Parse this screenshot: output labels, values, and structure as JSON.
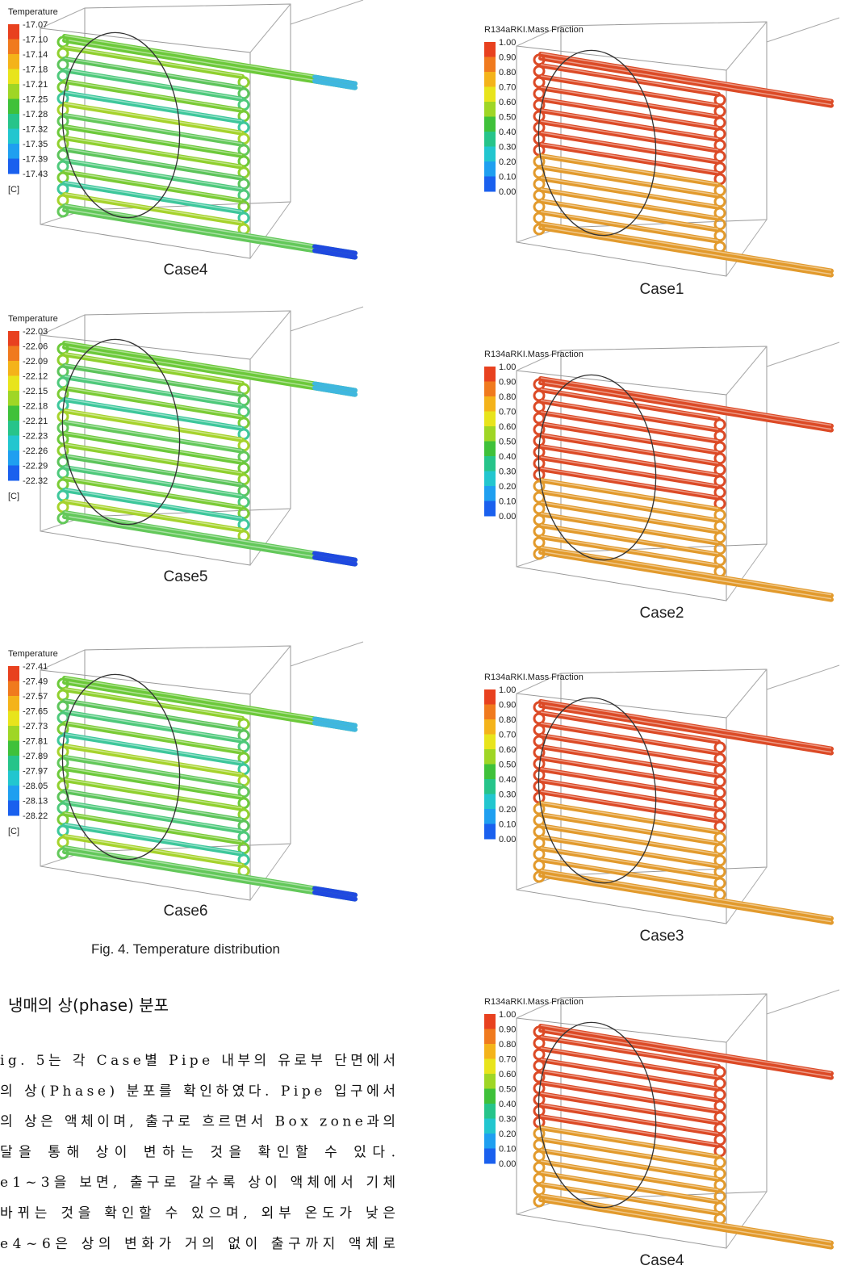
{
  "figure_left": {
    "panels": [
      {
        "legend_title": "Temperature",
        "ticks": [
          "-17.07",
          "-17.10",
          "-17.14",
          "-17.18",
          "-17.21",
          "-17.25",
          "-17.28",
          "-17.32",
          "-17.35",
          "-17.39",
          "-17.43"
        ],
        "unit": "[C]",
        "caption": "Case4"
      },
      {
        "legend_title": "Temperature",
        "ticks": [
          "-22.03",
          "-22.06",
          "-22.09",
          "-22.12",
          "-22.15",
          "-22.18",
          "-22.21",
          "-22.23",
          "-22.26",
          "-22.29",
          "-22.32"
        ],
        "unit": "[C]",
        "caption": "Case5"
      },
      {
        "legend_title": "Temperature",
        "ticks": [
          "-27.41",
          "-27.49",
          "-27.57",
          "-27.65",
          "-27.73",
          "-27.81",
          "-27.89",
          "-27.97",
          "-28.05",
          "-28.13",
          "-28.22"
        ],
        "unit": "[C]",
        "caption": "Case6"
      }
    ],
    "caption": "Fig. 4. Temperature distribution"
  },
  "section": {
    "heading": "냉매의 상(phase) 분포",
    "lines": [
      "ig. 5는 각 Case별 Pipe 내부의 유로부 단면에서",
      "의 상(Phase) 분포를 확인하였다. Pipe 입구에서",
      "의 상은 액체이며, 출구로 흐르면서 Box zone과의",
      "달을 통해 상이 변하는 것을 확인할 수 있다.",
      "e1~3을 보면, 출구로 갈수록 상이 액체에서 기체",
      "바뀌는 것을 확인할 수 있으며, 외부 온도가 낮은",
      "e4~6은 상의 변화가 거의 없이 출구까지 액체로"
    ]
  },
  "figure_right": {
    "panels": [
      {
        "legend_title": "R134aRKI.Mass Fraction",
        "ticks": [
          "1.00",
          "0.90",
          "0.80",
          "0.70",
          "0.60",
          "0.50",
          "0.40",
          "0.30",
          "0.20",
          "0.10",
          "0.00"
        ],
        "caption": "Case1"
      },
      {
        "legend_title": "R134aRKI.Mass Fraction",
        "ticks": [
          "1.00",
          "0.90",
          "0.80",
          "0.70",
          "0.60",
          "0.50",
          "0.40",
          "0.30",
          "0.20",
          "0.10",
          "0.00"
        ],
        "caption": "Case2"
      },
      {
        "legend_title": "R134aRKI.Mass Fraction",
        "ticks": [
          "1.00",
          "0.90",
          "0.80",
          "0.70",
          "0.60",
          "0.50",
          "0.40",
          "0.30",
          "0.20",
          "0.10",
          "0.00"
        ],
        "caption": "Case3"
      },
      {
        "legend_title": "R134aRKI.Mass Fraction",
        "ticks": [
          "1.00",
          "0.90",
          "0.80",
          "0.70",
          "0.60",
          "0.50",
          "0.40",
          "0.30",
          "0.20",
          "0.10",
          "0.00"
        ],
        "caption": "Case4"
      }
    ]
  }
}
